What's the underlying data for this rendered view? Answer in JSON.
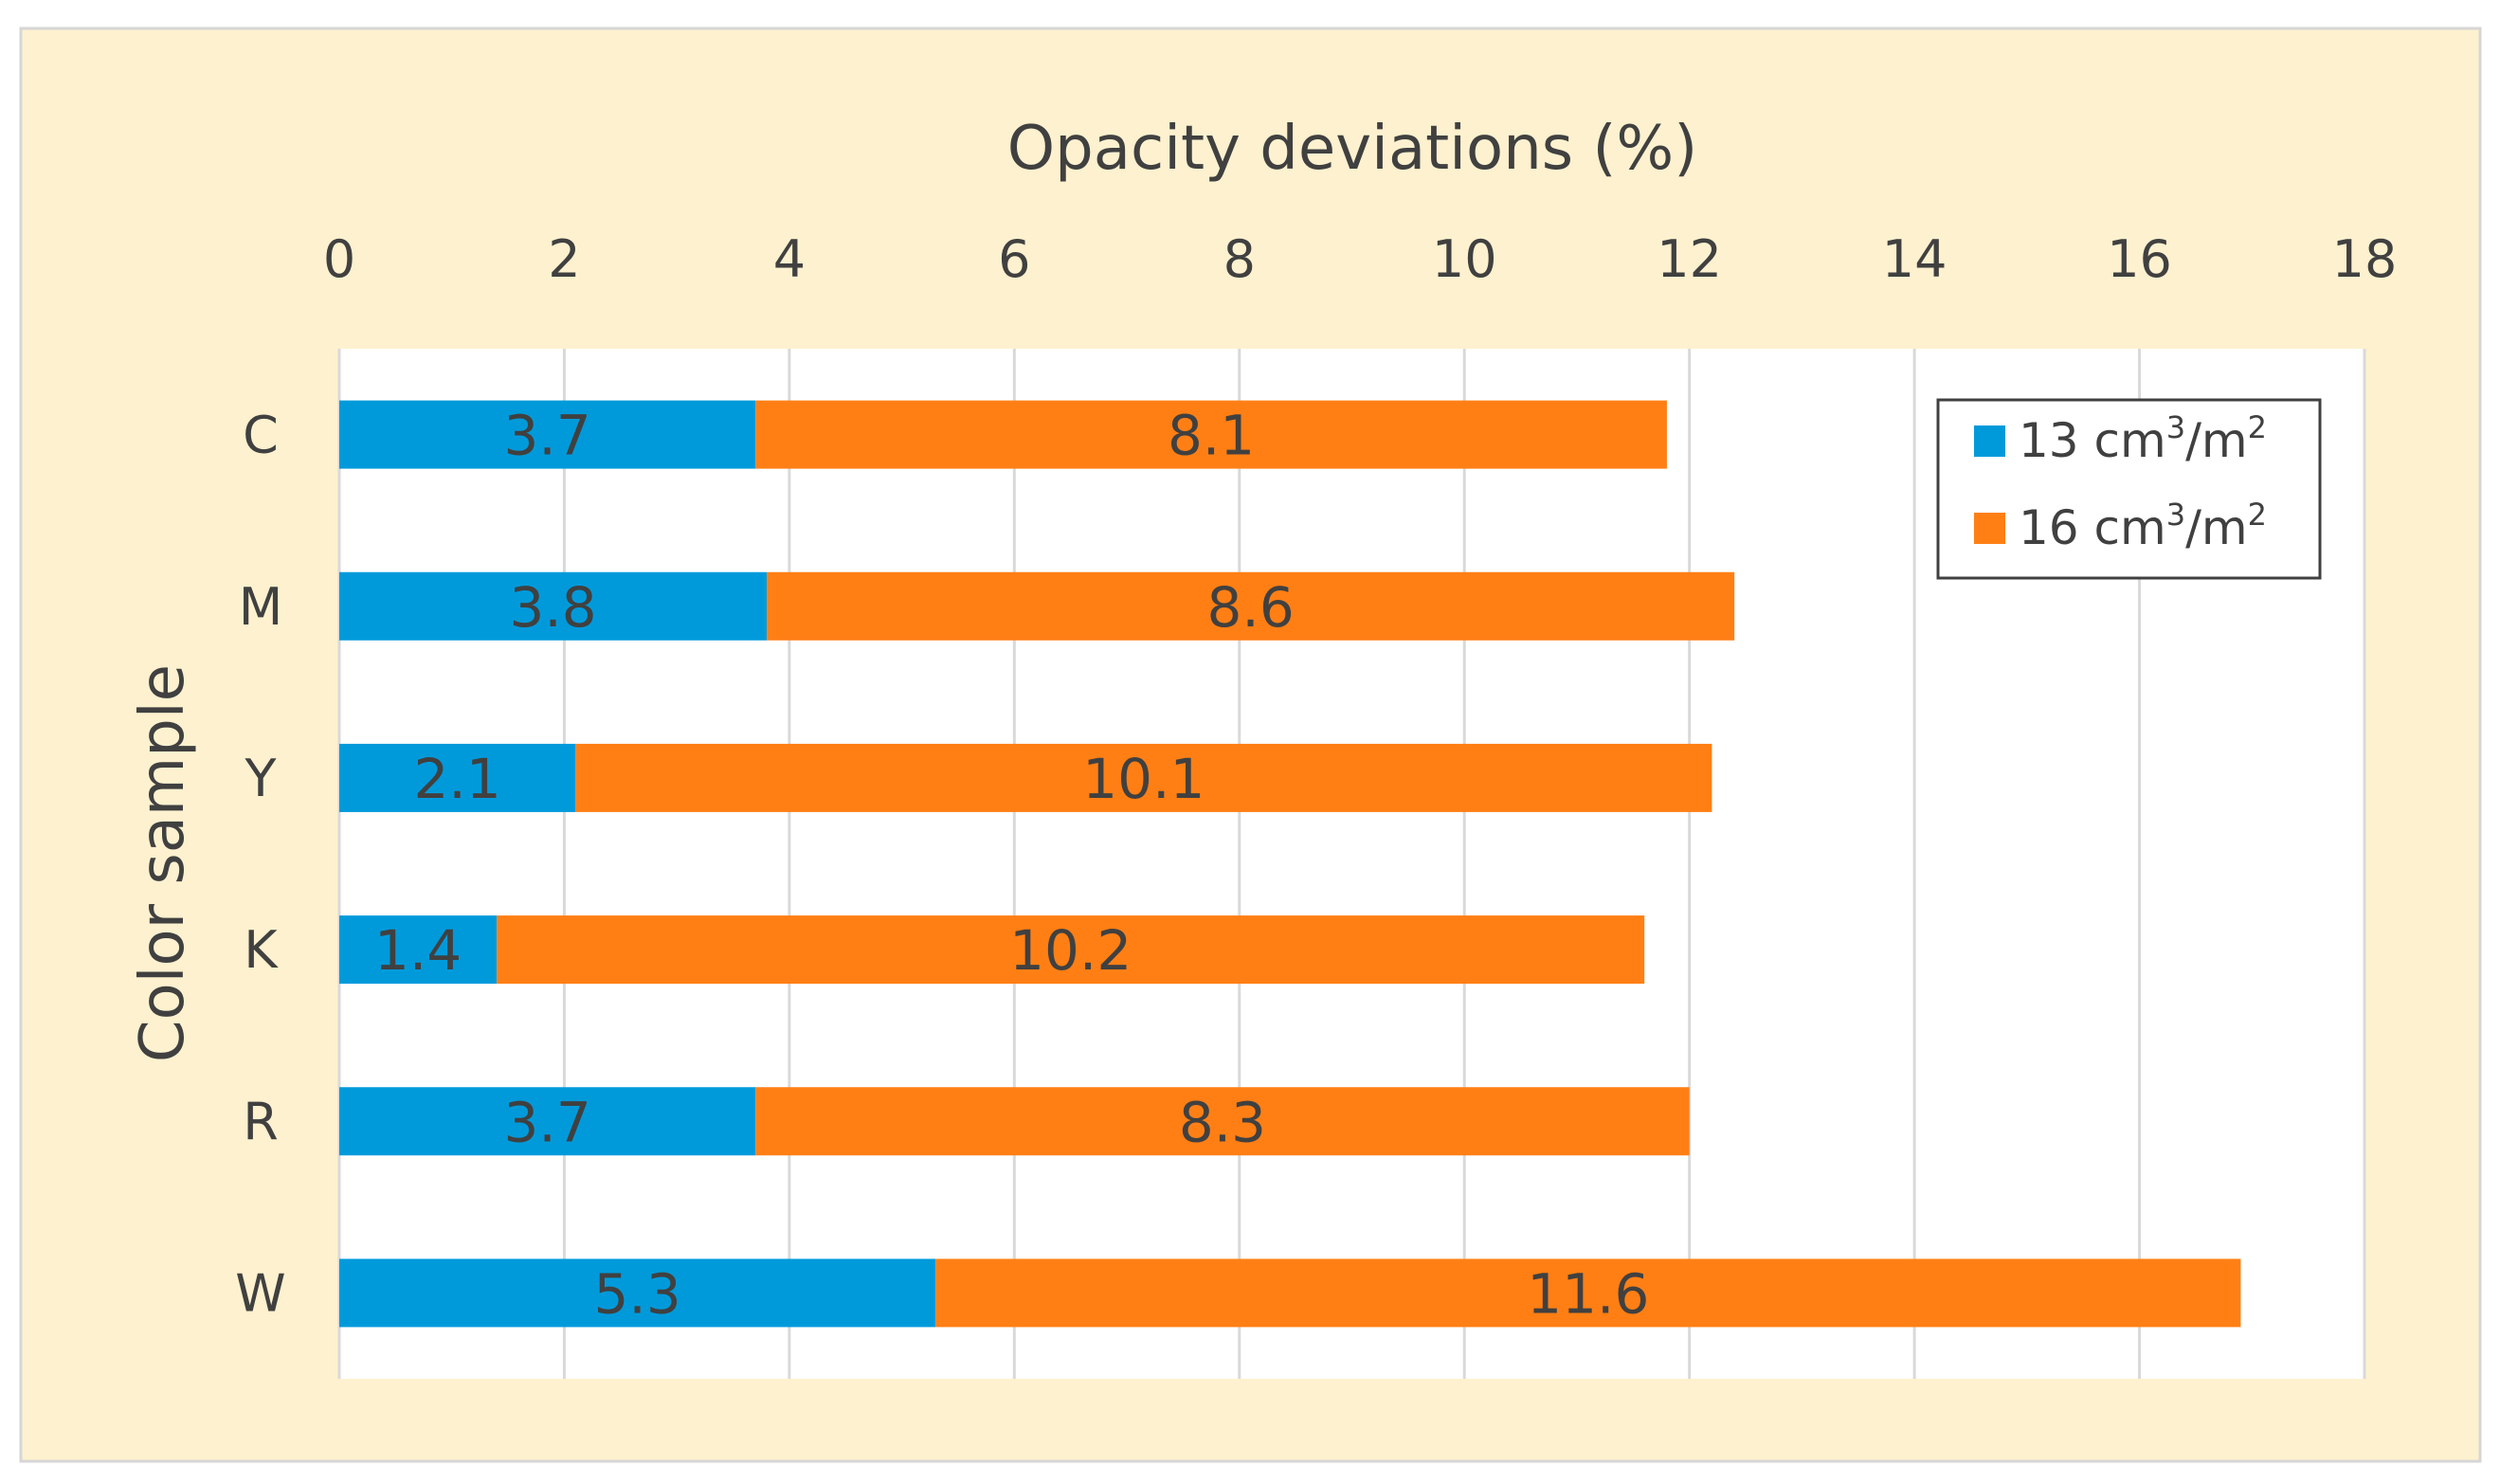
{
  "chart_data": {
    "type": "bar",
    "orientation": "horizontal",
    "stacked": true,
    "title": "",
    "xlabel": "Opacity deviations (%)",
    "ylabel": "Color sample",
    "categories": [
      "C",
      "M",
      "Y",
      "K",
      "R",
      "W"
    ],
    "series": [
      {
        "name": "13 cm3/m2",
        "legend_main": "13 cm",
        "legend_sup1": "3",
        "legend_mid": "/m",
        "legend_sup2": "2",
        "color": "#009ADB",
        "values": [
          3.7,
          3.8,
          2.1,
          1.4,
          3.7,
          5.3
        ],
        "labels": [
          "3.7",
          "3.8",
          "2.1",
          "1.4",
          "3.7",
          "5.3"
        ]
      },
      {
        "name": "16 cm3/m2",
        "legend_main": "16 cm",
        "legend_sup1": "3",
        "legend_mid": "/m",
        "legend_sup2": "2",
        "color": "#FF7F15",
        "values": [
          8.1,
          8.6,
          10.1,
          10.2,
          8.3,
          11.6
        ],
        "labels": [
          "8.1",
          "8.6",
          "10.1",
          "10.2",
          "8.3",
          "11.6"
        ]
      }
    ],
    "xlim": [
      0,
      18
    ],
    "xticks": [
      0,
      2,
      4,
      6,
      8,
      10,
      12,
      14,
      16,
      18
    ],
    "xtick_labels": [
      "0",
      "2",
      "4",
      "6",
      "8",
      "10",
      "12",
      "14",
      "16",
      "18"
    ],
    "xaxis_position": "top",
    "grid": "vertical",
    "legend_position": "top-right"
  },
  "colors": {
    "outer_background": "#FDF1CF",
    "plot_background": "#FFFFFF",
    "gridline": "#D9D9D9",
    "text": "#404040"
  }
}
